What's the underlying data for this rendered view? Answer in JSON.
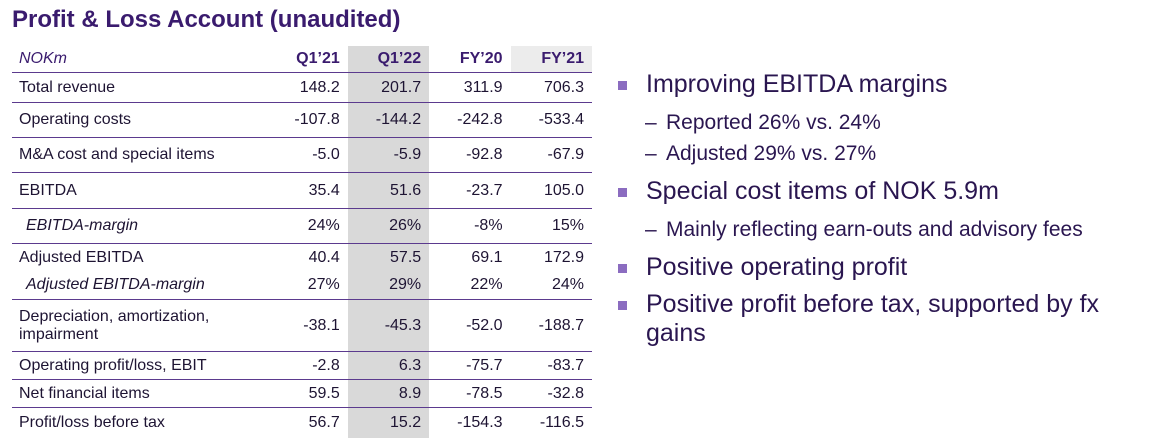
{
  "title": "Profit & Loss Account (unaudited)",
  "table": {
    "unit_label": "NOKm",
    "columns": [
      "Q1’21",
      "Q1’22",
      "FY’20",
      "FY’21"
    ],
    "rows": [
      {
        "label": "Total revenue",
        "values": [
          "148.2",
          "201.7",
          "311.9",
          "706.3"
        ]
      },
      {
        "label": "Operating costs",
        "values": [
          "-107.8",
          "-144.2",
          "-242.8",
          "-533.4"
        ]
      },
      {
        "label": "M&A cost and special items",
        "values": [
          "-5.0",
          "-5.9",
          "-92.8",
          "-67.9"
        ]
      },
      {
        "label": "EBITDA",
        "values": [
          "35.4",
          "51.6",
          "-23.7",
          "105.0"
        ]
      },
      {
        "label": "EBITDA-margin",
        "values": [
          "24%",
          "26%",
          "-8%",
          "15%"
        ]
      },
      {
        "label": "Adjusted EBITDA",
        "values": [
          "40.4",
          "57.5",
          "69.1",
          "172.9"
        ]
      },
      {
        "label": "Adjusted EBITDA-margin",
        "values": [
          "27%",
          "29%",
          "22%",
          "24%"
        ]
      },
      {
        "label": "Depreciation, amortization, impairment",
        "values": [
          "-38.1",
          "-45.3",
          "-52.0",
          "-188.7"
        ]
      },
      {
        "label": "Operating profit/loss, EBIT",
        "values": [
          "-2.8",
          "6.3",
          "-75.7",
          "-83.7"
        ]
      },
      {
        "label": "Net financial items",
        "values": [
          "59.5",
          "8.9",
          "-78.5",
          "-32.8"
        ]
      },
      {
        "label": "Profit/loss before tax",
        "values": [
          "56.7",
          "15.2",
          "-154.3",
          "-116.5"
        ]
      }
    ]
  },
  "bullets": {
    "b1": "Improving EBITDA margins",
    "b1_sub1": "Reported 26% vs. 24%",
    "b1_sub2": "Adjusted 29% vs. 27%",
    "b2": "Special cost items of NOK 5.9m",
    "b2_sub1": "Mainly reflecting earn-outs and advisory fees",
    "b3": "Positive operating profit",
    "b4": "Positive profit before tax, supported by fx gains",
    "dash": "–"
  }
}
